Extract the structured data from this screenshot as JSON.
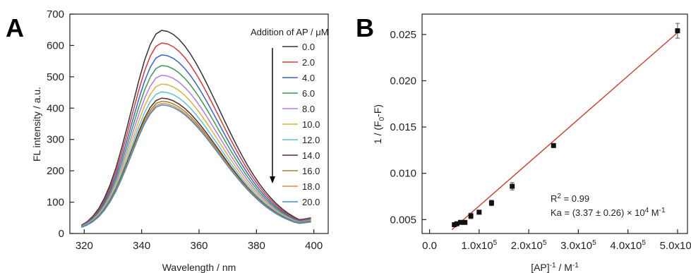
{
  "chart_data": [
    {
      "panel_label": "A",
      "type": "line",
      "xlabel": "Wavelength / nm",
      "ylabel": "FL intensity / a.u.",
      "xlim": [
        315,
        405
      ],
      "ylim": [
        0,
        700
      ],
      "xticks": [
        "320",
        "340",
        "360",
        "380",
        "400"
      ],
      "yticks": [
        "0",
        "100",
        "200",
        "300",
        "400",
        "500",
        "600",
        "700"
      ],
      "legend_title": "Addition of AP / μM",
      "legend_position": "top-right",
      "x": [
        319,
        321,
        323,
        325,
        327,
        329,
        331,
        333,
        335,
        337,
        339,
        341,
        343,
        345,
        347,
        349,
        351,
        353,
        355,
        357,
        359,
        361,
        363,
        365,
        367,
        369,
        371,
        373,
        375,
        377,
        379,
        381,
        383,
        385,
        387,
        389,
        391,
        393,
        395,
        397,
        399
      ],
      "series": [
        {
          "name": "0.0",
          "color": "#333333",
          "peak": 648,
          "tail": 52
        },
        {
          "name": "2.0",
          "color": "#e03535",
          "peak": 608,
          "tail": 50
        },
        {
          "name": "4.0",
          "color": "#3a63c8",
          "peak": 570,
          "tail": 48
        },
        {
          "name": "6.0",
          "color": "#3a9a4e",
          "peak": 536,
          "tail": 46
        },
        {
          "name": "8.0",
          "color": "#b57ae6",
          "peak": 505,
          "tail": 45
        },
        {
          "name": "10.0",
          "color": "#d8b43a",
          "peak": 477,
          "tail": 43
        },
        {
          "name": "12.0",
          "color": "#5bc3d8",
          "peak": 452,
          "tail": 42
        },
        {
          "name": "14.0",
          "color": "#5a2a2a",
          "peak": 432,
          "tail": 41
        },
        {
          "name": "16.0",
          "color": "#9a8a3a",
          "peak": 422,
          "tail": 40
        },
        {
          "name": "18.0",
          "color": "#e08a4a",
          "peak": 415,
          "tail": 39
        },
        {
          "name": "20.0",
          "color": "#4a8ac8",
          "peak": 410,
          "tail": 38
        }
      ]
    },
    {
      "panel_label": "B",
      "type": "scatter",
      "xlabel_parts": [
        "[AP]",
        "-1",
        " / M",
        "-1"
      ],
      "ylabel_parts": [
        "1 / (F",
        "0",
        "-F)"
      ],
      "xlim": [
        0,
        500000
      ],
      "ylim": [
        0.0035,
        0.0272
      ],
      "xticks": [
        "0.0",
        "1.0x10",
        "2.0x10",
        "3.0x10",
        "4.0x10",
        "5.0x10"
      ],
      "xtick_exp": "5",
      "yticks": [
        "0.005",
        "0.010",
        "0.015",
        "0.020",
        "0.025"
      ],
      "points": [
        {
          "x": 50000,
          "y": 0.00445,
          "err": 0.0002
        },
        {
          "x": 55000,
          "y": 0.00455,
          "err": 0.0002
        },
        {
          "x": 62500,
          "y": 0.0047,
          "err": 0.0002
        },
        {
          "x": 71400,
          "y": 0.0047,
          "err": 0.0002
        },
        {
          "x": 83300,
          "y": 0.0054,
          "err": 0.0003
        },
        {
          "x": 100000,
          "y": 0.0058,
          "err": 0.0002
        },
        {
          "x": 125000,
          "y": 0.0068,
          "err": 0.0003
        },
        {
          "x": 166700,
          "y": 0.0086,
          "err": 0.0004
        },
        {
          "x": 250000,
          "y": 0.013,
          "err": 0.0002
        },
        {
          "x": 500000,
          "y": 0.0254,
          "err": 0.0008
        }
      ],
      "fit": {
        "color": "#d0392b",
        "x0": 45000,
        "y0": 0.0039,
        "x1": 500000,
        "y1": 0.0252
      },
      "annotation_r2_parts": [
        "R",
        "2",
        " = 0.99"
      ],
      "annotation_ka_parts": [
        "Ka = (3.37 ± 0.26) × 10",
        "4",
        " M",
        "-1"
      ]
    }
  ]
}
